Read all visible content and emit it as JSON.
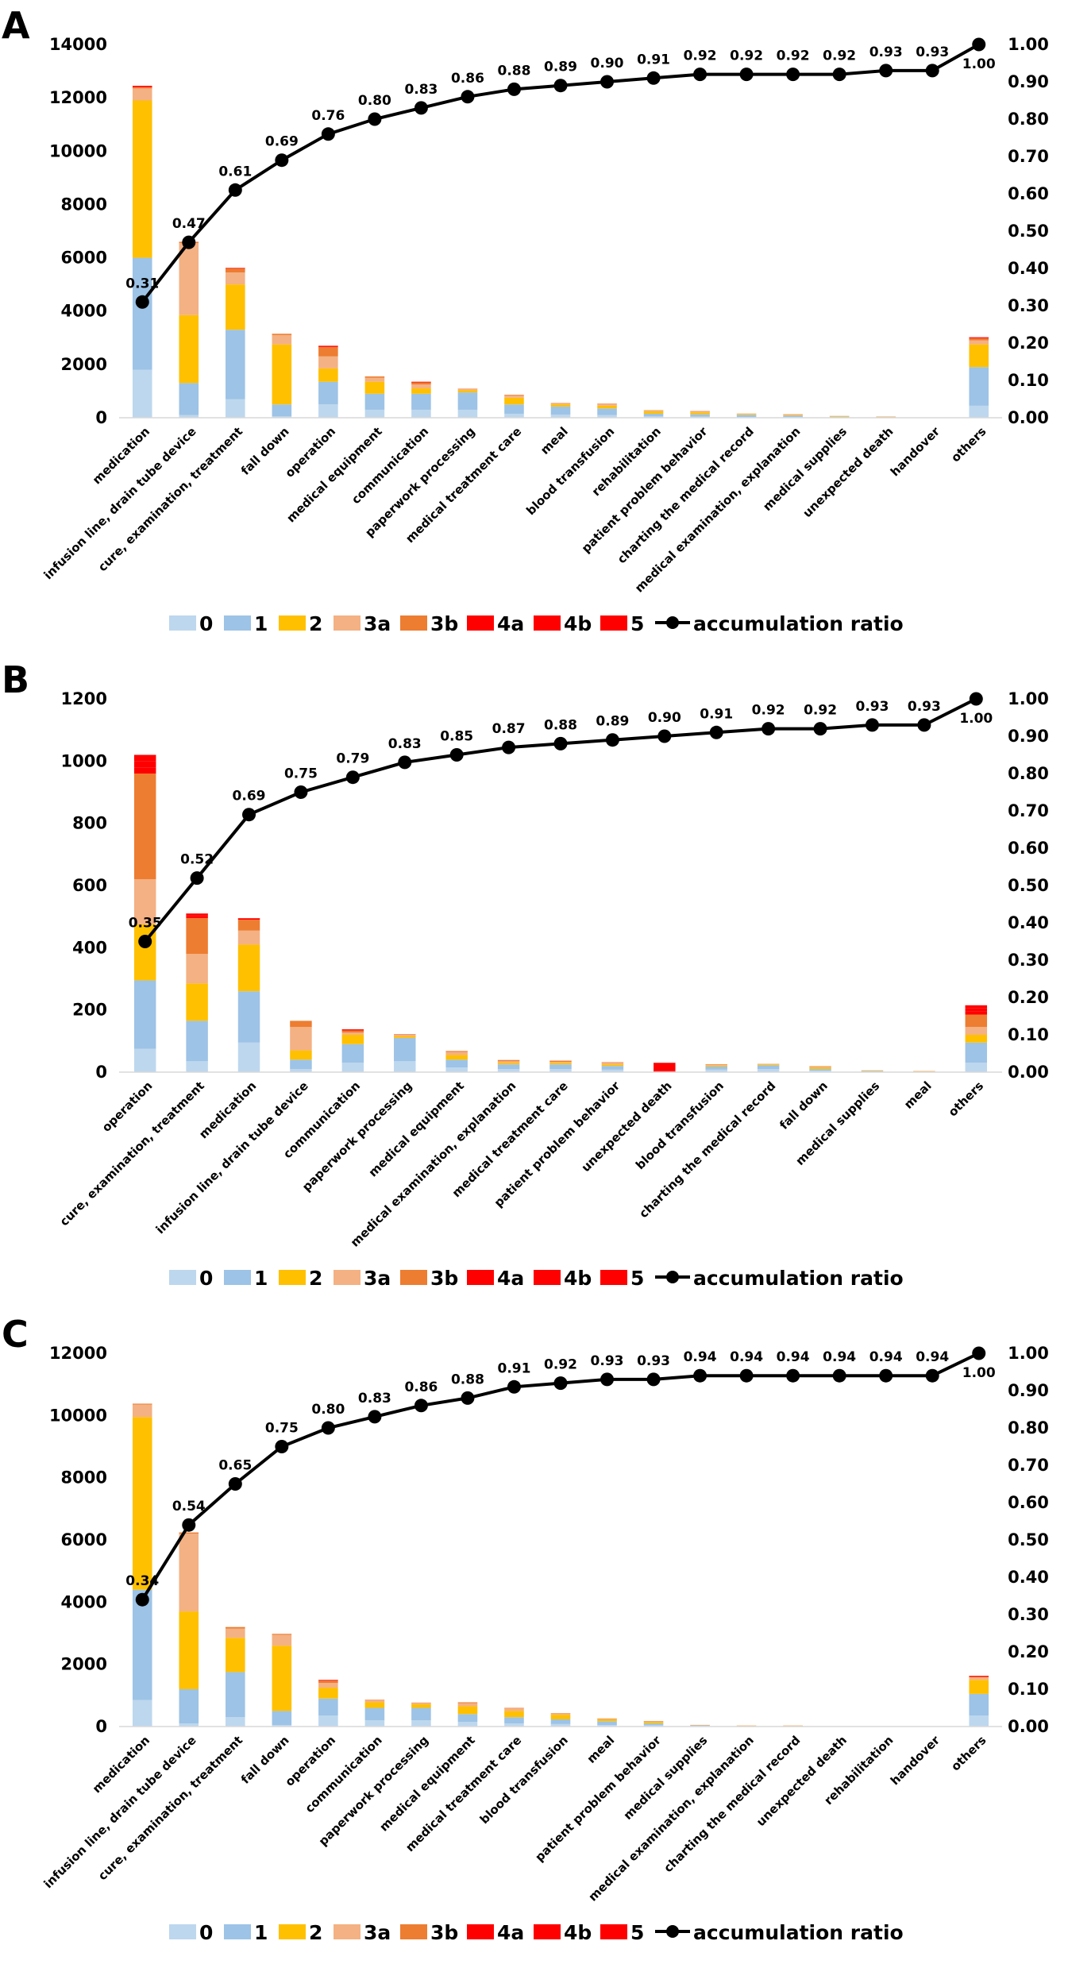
{
  "legend": {
    "levels": [
      {
        "key": "0",
        "label": "0",
        "color": "#bdd7ee"
      },
      {
        "key": "1",
        "label": "1",
        "color": "#9dc3e6"
      },
      {
        "key": "2",
        "label": "2",
        "color": "#ffc000"
      },
      {
        "key": "3a",
        "label": "3a",
        "color": "#f4b183"
      },
      {
        "key": "3b",
        "label": "3b",
        "color": "#ed7d31"
      },
      {
        "key": "4a",
        "label": "4a",
        "color": "#ff0000"
      },
      {
        "key": "4b",
        "label": "4b",
        "color": "#ff0000"
      },
      {
        "key": "5",
        "label": "5",
        "color": "#ff0000"
      }
    ],
    "line_label": "accumulation ratio",
    "line_color": "#000000"
  },
  "chart_data": [
    {
      "panel": "A",
      "type": "bar",
      "stacked": true,
      "ylim": [
        0,
        14000
      ],
      "yticks": [
        0,
        2000,
        4000,
        6000,
        8000,
        10000,
        12000,
        14000
      ],
      "y2lim": [
        0,
        1
      ],
      "y2ticks": [
        "0.00",
        "0.10",
        "0.20",
        "0.30",
        "0.40",
        "0.50",
        "0.60",
        "0.70",
        "0.80",
        "0.90",
        "1.00"
      ],
      "categories": [
        "medication",
        "infusion line, drain tube device",
        "cure, examination, treatment",
        "fall down",
        "operation",
        "medical equipment",
        "communication",
        "paperwork processing",
        "medical treatment care",
        "meal",
        "blood transfusion",
        "rehabilitation",
        "patient problem behavior",
        "charting the medical record",
        "medical examination, explanation",
        "medical supplies",
        "unexpected death",
        "handover",
        "others"
      ],
      "series": [
        {
          "name": "0",
          "values": [
            1800,
            100,
            700,
            50,
            500,
            300,
            300,
            300,
            150,
            120,
            100,
            50,
            40,
            30,
            20,
            10,
            10,
            0,
            450
          ]
        },
        {
          "name": "1",
          "values": [
            4200,
            1200,
            2600,
            450,
            850,
            600,
            600,
            650,
            350,
            300,
            250,
            100,
            90,
            80,
            60,
            30,
            20,
            0,
            1450
          ]
        },
        {
          "name": "2",
          "values": [
            5900,
            2550,
            1700,
            2250,
            500,
            450,
            200,
            80,
            250,
            80,
            100,
            90,
            70,
            30,
            20,
            20,
            10,
            0,
            850
          ]
        },
        {
          "name": "3a",
          "values": [
            450,
            2700,
            450,
            350,
            450,
            150,
            150,
            50,
            80,
            40,
            60,
            30,
            40,
            20,
            20,
            10,
            10,
            0,
            150
          ]
        },
        {
          "name": "3b",
          "values": [
            50,
            50,
            150,
            50,
            350,
            50,
            80,
            10,
            30,
            10,
            20,
            10,
            10,
            0,
            10,
            0,
            0,
            0,
            80
          ]
        },
        {
          "name": "4a",
          "values": [
            0,
            0,
            10,
            0,
            20,
            0,
            10,
            0,
            0,
            0,
            0,
            0,
            0,
            0,
            0,
            0,
            0,
            0,
            10
          ]
        },
        {
          "name": "4b",
          "values": [
            0,
            0,
            10,
            0,
            20,
            0,
            10,
            0,
            0,
            0,
            0,
            0,
            0,
            0,
            0,
            0,
            0,
            0,
            10
          ]
        },
        {
          "name": "5",
          "values": [
            50,
            0,
            0,
            0,
            10,
            0,
            0,
            0,
            0,
            0,
            0,
            0,
            0,
            0,
            0,
            0,
            0,
            0,
            20
          ]
        }
      ],
      "accumulation": {
        "values": [
          0.31,
          0.47,
          0.61,
          0.69,
          0.76,
          0.8,
          0.83,
          0.86,
          0.88,
          0.89,
          0.9,
          0.91,
          0.92,
          0.92,
          0.92,
          0.92,
          0.93,
          0.93,
          1.0
        ],
        "labels": [
          "0.31",
          "0.47",
          "0.61",
          "0.69",
          "0.76",
          "0.80",
          "0.83",
          "0.86",
          "0.88",
          "0.89",
          "0.90",
          "0.91",
          "0.92",
          "0.92",
          "0.92",
          "0.92",
          "0.93",
          "0.93",
          "1.00"
        ]
      }
    },
    {
      "panel": "B",
      "type": "bar",
      "stacked": true,
      "ylim": [
        0,
        1200
      ],
      "yticks": [
        0,
        200,
        400,
        600,
        800,
        1000,
        1200
      ],
      "y2lim": [
        0,
        1
      ],
      "y2ticks": [
        "0.00",
        "0.10",
        "0.20",
        "0.30",
        "0.40",
        "0.50",
        "0.60",
        "0.70",
        "0.80",
        "0.90",
        "1.00"
      ],
      "categories": [
        "operation",
        "cure, examination, treatment",
        "medication",
        "infusion line, drain tube device",
        "communication",
        "paperwork processing",
        "medical equipment",
        "medical examination, explanation",
        "medical treatment care",
        "patient problem behavior",
        "unexpected death",
        "blood transfusion",
        "charting the medical record",
        "fall down",
        "medical supplies",
        "meal",
        "others"
      ],
      "series": [
        {
          "name": "0",
          "values": [
            75,
            35,
            95,
            10,
            30,
            35,
            15,
            10,
            10,
            8,
            0,
            8,
            10,
            5,
            2,
            1,
            30
          ]
        },
        {
          "name": "1",
          "values": [
            220,
            130,
            165,
            30,
            60,
            75,
            25,
            15,
            15,
            12,
            0,
            10,
            12,
            5,
            2,
            1,
            65
          ]
        },
        {
          "name": "2",
          "values": [
            180,
            120,
            150,
            30,
            30,
            5,
            15,
            5,
            5,
            5,
            0,
            3,
            3,
            5,
            1,
            1,
            25
          ]
        },
        {
          "name": "3a",
          "values": [
            145,
            95,
            45,
            75,
            7,
            5,
            10,
            5,
            3,
            5,
            0,
            2,
            2,
            2,
            1,
            1,
            25
          ]
        },
        {
          "name": "3b",
          "values": [
            340,
            115,
            35,
            20,
            7,
            2,
            3,
            4,
            4,
            2,
            1,
            2,
            0,
            2,
            0,
            0,
            40
          ]
        },
        {
          "name": "4a",
          "values": [
            20,
            5,
            3,
            0,
            2,
            0,
            0,
            0,
            0,
            0,
            2,
            0,
            0,
            0,
            0,
            0,
            10
          ]
        },
        {
          "name": "4b",
          "values": [
            20,
            5,
            2,
            0,
            2,
            0,
            0,
            0,
            0,
            0,
            2,
            0,
            0,
            0,
            0,
            0,
            10
          ]
        },
        {
          "name": "5",
          "values": [
            20,
            5,
            0,
            0,
            0,
            0,
            0,
            0,
            0,
            0,
            25,
            0,
            0,
            0,
            0,
            0,
            10
          ]
        }
      ],
      "accumulation": {
        "values": [
          0.35,
          0.52,
          0.69,
          0.75,
          0.79,
          0.83,
          0.85,
          0.87,
          0.88,
          0.89,
          0.9,
          0.91,
          0.92,
          0.92,
          0.93,
          0.93,
          1.0
        ],
        "labels": [
          "0.35",
          "0.52",
          "0.69",
          "0.75",
          "0.79",
          "0.83",
          "0.85",
          "0.87",
          "0.88",
          "0.89",
          "0.90",
          "0.91",
          "0.92",
          "0.92",
          "0.93",
          "0.93",
          "1.00"
        ]
      }
    },
    {
      "panel": "C",
      "type": "bar",
      "stacked": true,
      "ylim": [
        0,
        12000
      ],
      "yticks": [
        0,
        2000,
        4000,
        6000,
        8000,
        10000,
        12000
      ],
      "y2lim": [
        0,
        1
      ],
      "y2ticks": [
        "0.00",
        "0.10",
        "0.20",
        "0.30",
        "0.40",
        "0.50",
        "0.60",
        "0.70",
        "0.80",
        "0.90",
        "1.00"
      ],
      "categories": [
        "medication",
        "infusion line, drain tube device",
        "cure, examination, treatment",
        "fall down",
        "operation",
        "communication",
        "paperwork processing",
        "medical equipment",
        "medical treatment care",
        "blood transfusion",
        "meal",
        "patient problem behavior",
        "medical supplies",
        "medical examination, explanation",
        "charting the medical record",
        "unexpected death",
        "rehabilitation",
        "handover",
        "others"
      ],
      "series": [
        {
          "name": "0",
          "values": [
            850,
            100,
            300,
            50,
            350,
            200,
            200,
            150,
            100,
            80,
            50,
            40,
            20,
            10,
            10,
            0,
            0,
            0,
            350
          ]
        },
        {
          "name": "1",
          "values": [
            3550,
            1100,
            1450,
            450,
            550,
            400,
            400,
            250,
            200,
            150,
            120,
            60,
            20,
            10,
            10,
            0,
            0,
            0,
            700
          ]
        },
        {
          "name": "2",
          "values": [
            5550,
            2500,
            1100,
            2100,
            350,
            180,
            120,
            250,
            200,
            150,
            60,
            50,
            10,
            10,
            10,
            0,
            0,
            0,
            450
          ]
        },
        {
          "name": "3a",
          "values": [
            400,
            2500,
            300,
            350,
            150,
            60,
            40,
            100,
            80,
            40,
            20,
            20,
            5,
            5,
            5,
            0,
            0,
            0,
            80
          ]
        },
        {
          "name": "3b",
          "values": [
            30,
            40,
            50,
            30,
            80,
            20,
            10,
            30,
            20,
            10,
            10,
            5,
            0,
            0,
            0,
            0,
            0,
            0,
            20
          ]
        },
        {
          "name": "4a",
          "values": [
            0,
            0,
            0,
            0,
            10,
            0,
            0,
            0,
            0,
            0,
            0,
            0,
            0,
            0,
            0,
            0,
            0,
            0,
            10
          ]
        },
        {
          "name": "4b",
          "values": [
            0,
            0,
            0,
            0,
            10,
            0,
            0,
            0,
            0,
            0,
            0,
            0,
            0,
            0,
            0,
            0,
            0,
            0,
            10
          ]
        },
        {
          "name": "5",
          "values": [
            0,
            0,
            0,
            0,
            0,
            0,
            0,
            0,
            0,
            0,
            0,
            0,
            0,
            0,
            0,
            0,
            0,
            0,
            10
          ]
        }
      ],
      "accumulation": {
        "values": [
          0.34,
          0.54,
          0.65,
          0.75,
          0.8,
          0.83,
          0.86,
          0.88,
          0.91,
          0.92,
          0.93,
          0.93,
          0.94,
          0.94,
          0.94,
          0.94,
          0.94,
          0.94,
          1.0
        ],
        "labels": [
          "0.34",
          "0.54",
          "0.65",
          "0.75",
          "0.80",
          "0.83",
          "0.86",
          "0.88",
          "0.91",
          "0.92",
          "0.93",
          "0.93",
          "0.94",
          "0.94",
          "0.94",
          "0.94",
          "0.94",
          "0.94",
          "1.00"
        ]
      }
    }
  ]
}
